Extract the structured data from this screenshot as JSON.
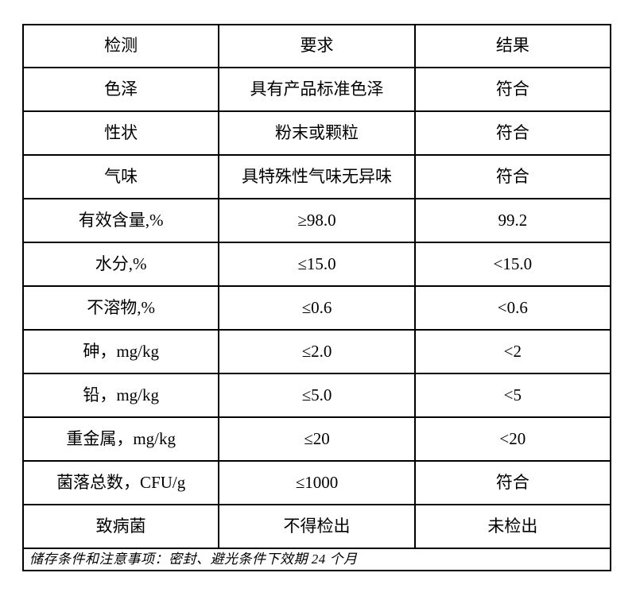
{
  "page": {
    "background_color": "#ffffff",
    "border_color": "#000000",
    "text_color": "#000000"
  },
  "table": {
    "headers": [
      "检测",
      "要求",
      "结果"
    ],
    "rows": [
      {
        "item": "色泽",
        "requirement": "具有产品标准色泽",
        "result": "符合"
      },
      {
        "item": "性状",
        "requirement": "粉末或颗粒",
        "result": "符合"
      },
      {
        "item": "气味",
        "requirement": "具特殊性气味无异味",
        "result": "符合"
      },
      {
        "item": "有效含量,%",
        "requirement": "≥98.0",
        "result": "99.2"
      },
      {
        "item": "水分,%",
        "requirement": "≤15.0",
        "result": "<15.0"
      },
      {
        "item": "不溶物,%",
        "requirement": "≤0.6",
        "result": "<0.6"
      },
      {
        "item": "砷，mg/kg",
        "requirement": "≤2.0",
        "result": "<2"
      },
      {
        "item": "铅，mg/kg",
        "requirement": "≤5.0",
        "result": "<5"
      },
      {
        "item": "重金属，mg/kg",
        "requirement": "≤20",
        "result": "<20"
      },
      {
        "item": "菌落总数，CFU/g",
        "requirement": "≤1000",
        "result": "符合"
      },
      {
        "item": "致病菌",
        "requirement": "不得检出",
        "result": "未检出"
      }
    ],
    "footer": "储存条件和注意事项：密封、避光条件下效期 24 个月"
  }
}
